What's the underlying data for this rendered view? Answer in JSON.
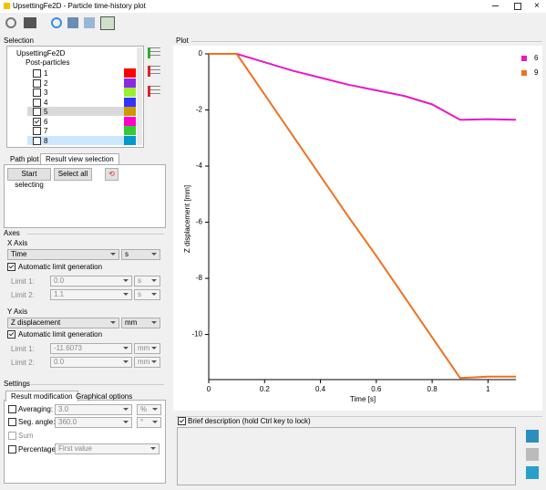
{
  "window": {
    "title": "UpsettingFe2D - Particle time-history plot"
  },
  "selection": {
    "label": "Selection",
    "root": "UpsettingFe2D",
    "group": "Post-particles",
    "items": [
      {
        "label": "1",
        "checked": false,
        "color": "#ff0000"
      },
      {
        "label": "2",
        "checked": false,
        "color": "#8a2be2"
      },
      {
        "label": "3",
        "checked": false,
        "color": "#99ee33"
      },
      {
        "label": "4",
        "checked": false,
        "color": "#3333ff"
      },
      {
        "label": "5",
        "checked": false,
        "color": "#cc9900"
      },
      {
        "label": "6",
        "checked": true,
        "color": "#ff00cc"
      },
      {
        "label": "7",
        "checked": false,
        "color": "#33cc33"
      },
      {
        "label": "8",
        "checked": false,
        "color": "#0099cc"
      }
    ]
  },
  "view_tabs": {
    "tabs": [
      "Path plot",
      "Result view selection"
    ],
    "buttons": [
      "Start selecting",
      "Select all"
    ]
  },
  "axes": {
    "label": "Axes",
    "x_axis": {
      "label": "X Axis",
      "quantity": "Time",
      "unit": "s",
      "auto_label": "Automatic limit generation",
      "auto": true,
      "limit1_label": "Limit 1:",
      "limit1": "0.0",
      "limit1_unit": "s",
      "limit2_label": "Limit 2:",
      "limit2": "1.1",
      "limit2_unit": "s"
    },
    "y_axis": {
      "label": "Y Axis",
      "quantity": "Z displacement",
      "unit": "mm",
      "auto_label": "Automatic limit generation",
      "auto": true,
      "limit1_label": "Limit 1:",
      "limit1": "-11.6073",
      "limit1_unit": "mm",
      "limit2_label": "Limit 2:",
      "limit2": "0.0",
      "limit2_unit": "mm"
    }
  },
  "settings": {
    "label": "Settings",
    "tabs": [
      "Result modification",
      "Graphical options"
    ],
    "averaging": {
      "label": "Averaging:",
      "value": "3.0",
      "unit": "%",
      "checked": false
    },
    "seg_angle": {
      "label": "Seg. angle:",
      "value": "360.0",
      "unit": "°",
      "checked": false
    },
    "sum": {
      "label": "Sum",
      "checked": false
    },
    "percentage": {
      "label": "Percentage:",
      "value": "First value",
      "checked": false
    }
  },
  "plot": {
    "label": "Plot",
    "brief": "Brief description (hold Ctrl key to lock)",
    "brief_checked": true
  },
  "chart_data": {
    "type": "line",
    "xlabel": "Time [s]",
    "ylabel": "Z displacement [mm]",
    "x": [
      0,
      0.1,
      0.2,
      0.3,
      0.4,
      0.5,
      0.6,
      0.7,
      0.8,
      0.9,
      1.0,
      1.1
    ],
    "series": [
      {
        "name": "6",
        "color": "#e619c8",
        "values": [
          0,
          0,
          -0.3,
          -0.6,
          -0.85,
          -1.1,
          -1.3,
          -1.5,
          -1.8,
          -2.35,
          -2.33,
          -2.35
        ]
      },
      {
        "name": "9",
        "color": "#f07020",
        "values": [
          0,
          0,
          -1.45,
          -2.9,
          -4.35,
          -5.8,
          -7.2,
          -8.65,
          -10.1,
          -11.55,
          -11.5,
          -11.5
        ]
      }
    ],
    "xlim": [
      0,
      1.1
    ],
    "ylim": [
      -11.6073,
      0
    ],
    "xticks": [
      0,
      0.2,
      0.4,
      0.6,
      0.8,
      1
    ],
    "yticks": [
      0,
      -2,
      -4,
      -6,
      -8,
      -10
    ],
    "legend": "right"
  }
}
